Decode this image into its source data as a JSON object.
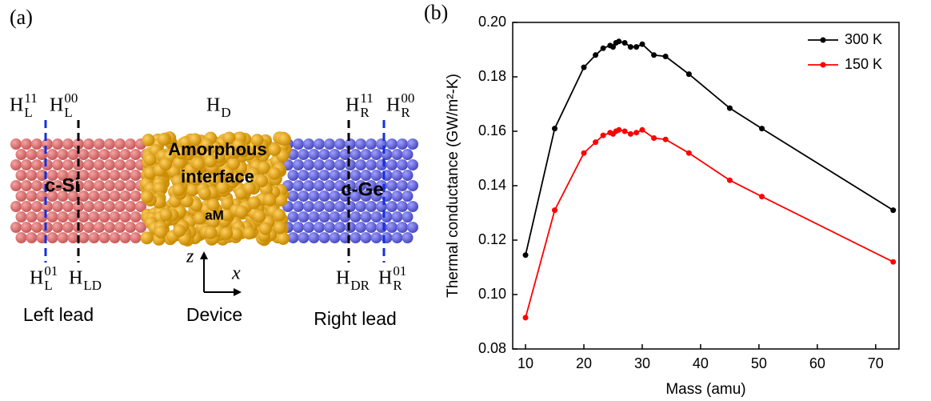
{
  "diagram": {
    "panel_label": "(a)",
    "regions": [
      "c-Si",
      "Amorphous",
      "interface",
      "aM",
      "c-Ge"
    ],
    "hamiltonians": [
      {
        "base": "H",
        "sup": "11",
        "sub": "L"
      },
      {
        "base": "H",
        "sup": "00",
        "sub": "L"
      },
      {
        "base": "H",
        "sub": "D"
      },
      {
        "base": "H",
        "sup": "11",
        "sub": "R"
      },
      {
        "base": "H",
        "sup": "00",
        "sub": "R"
      },
      {
        "base": "H",
        "sup": "01",
        "sub": "L"
      },
      {
        "base": "H",
        "sub": "LD"
      },
      {
        "base": "H",
        "sub": "DR"
      },
      {
        "base": "H",
        "sup": "01",
        "sub": "R"
      }
    ],
    "axes": [
      "z",
      "x"
    ],
    "sections": [
      "Left lead",
      "Device",
      "Right lead"
    ]
  },
  "chart_data": {
    "type": "line",
    "panel_label": "(b)",
    "xlabel": "Mass (amu)",
    "ylabel": "Thermal conductance (GW/m²-K)",
    "x": [
      10,
      15,
      20,
      22,
      23.3,
      24.5,
      25,
      25.5,
      26,
      27,
      28,
      29,
      30,
      32,
      34,
      38,
      45,
      50.5,
      73
    ],
    "series": [
      {
        "name": "300 K",
        "color": "#000000",
        "values": [
          0.1145,
          0.161,
          0.1835,
          0.188,
          0.1905,
          0.1915,
          0.191,
          0.1925,
          0.193,
          0.1925,
          0.191,
          0.191,
          0.192,
          0.188,
          0.1875,
          0.181,
          0.1685,
          0.161,
          0.131
        ]
      },
      {
        "name": "150 K",
        "color": "#ff0000",
        "values": [
          0.0915,
          0.131,
          0.152,
          0.156,
          0.1585,
          0.1595,
          0.159,
          0.16,
          0.1605,
          0.16,
          0.159,
          0.1595,
          0.1605,
          0.1575,
          0.157,
          0.152,
          0.142,
          0.136,
          0.112
        ]
      }
    ],
    "xlim": [
      7.8,
      74
    ],
    "xticks": [
      10,
      20,
      30,
      40,
      50,
      60,
      70
    ],
    "ylim": [
      0.08,
      0.2
    ],
    "yticks": [
      0.08,
      {
        "value": 0.1,
        "label": "0.10"
      },
      0.12,
      0.14,
      0.16,
      0.18,
      {
        "value": 0.2,
        "label": "0.20"
      }
    ],
    "legend": "upper right",
    "grid": false
  }
}
